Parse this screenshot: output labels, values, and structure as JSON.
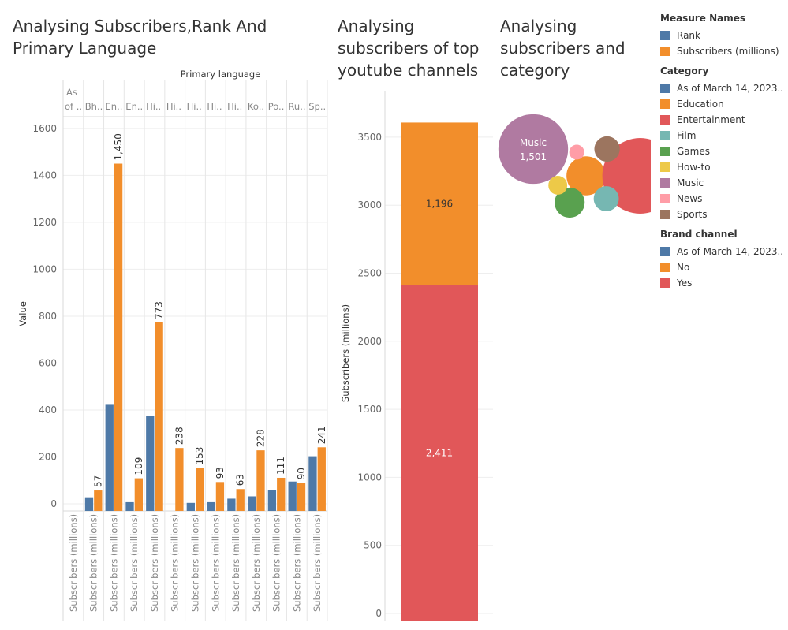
{
  "titles": {
    "chart1": "Analysing Subscribers,Rank And Primary Language",
    "chart2": "Analysing subscribers of top youtube channels",
    "chart3": "Analysing subscribers and category"
  },
  "legends": [
    {
      "title": "Measure Names",
      "items": [
        {
          "label": "Rank",
          "color": "#4e79a7"
        },
        {
          "label": "Subscribers (millions)",
          "color": "#f28e2b"
        }
      ]
    },
    {
      "title": "Category",
      "items": [
        {
          "label": "As of March 14, 2023..",
          "color": "#4e79a7"
        },
        {
          "label": "Education",
          "color": "#f28e2b"
        },
        {
          "label": "Entertainment",
          "color": "#e15759"
        },
        {
          "label": "Film",
          "color": "#76b7b2"
        },
        {
          "label": "Games",
          "color": "#59a14f"
        },
        {
          "label": "How-to",
          "color": "#edc948"
        },
        {
          "label": "Music",
          "color": "#b07aa1"
        },
        {
          "label": "News",
          "color": "#ff9da7"
        },
        {
          "label": "Sports",
          "color": "#9c755f"
        }
      ]
    },
    {
      "title": "Brand channel",
      "items": [
        {
          "label": "As of March 14, 2023..",
          "color": "#4e79a7"
        },
        {
          "label": "No",
          "color": "#f28e2b"
        },
        {
          "label": "Yes",
          "color": "#e15759"
        }
      ]
    }
  ],
  "chart_data": [
    {
      "type": "bar",
      "title": "Analysing Subscribers,Rank And Primary Language",
      "header": "Primary language",
      "ylabel": "Value",
      "ylim": [
        0,
        1650
      ],
      "yticks": [
        0,
        200,
        400,
        600,
        800,
        1000,
        1200,
        1400,
        1600
      ],
      "categories": [
        "As of ..",
        "Bh..",
        "En..",
        "En..",
        "Hi..",
        "Hi..",
        "Hi..",
        "Hi..",
        "Hi..",
        "Ko..",
        "Po..",
        "Ru..",
        "Sp.."
      ],
      "xtick_label": "Subscribers (millions)",
      "series": [
        {
          "name": "Rank",
          "color": "#4e79a7",
          "values": [
            0,
            28,
            422,
            7,
            374,
            0,
            4,
            7,
            22,
            32,
            60,
            95,
            203
          ]
        },
        {
          "name": "Subscribers (millions)",
          "color": "#f28e2b",
          "values": [
            0,
            57,
            1450,
            109,
            773,
            238,
            153,
            93,
            63,
            228,
            111,
            90,
            241
          ],
          "data_labels": [
            "",
            "57",
            "1,450",
            "109",
            "773",
            "238",
            "153",
            "93",
            "63",
            "228",
            "111",
            "90",
            "241"
          ]
        }
      ]
    },
    {
      "type": "bar",
      "stacked": true,
      "title": "Analysing subscribers of top youtube channels",
      "ylabel": "Subscribers (millions)",
      "ylim": [
        0,
        3650
      ],
      "yticks": [
        0,
        500,
        1000,
        1500,
        2000,
        2500,
        3000,
        3500
      ],
      "series": [
        {
          "name": "Yes",
          "color": "#e15759",
          "value": 2411,
          "label": "2,411",
          "label_color": "#ffffff"
        },
        {
          "name": "No",
          "color": "#f28e2b",
          "value": 1196,
          "label": "1,196",
          "label_color": "#333333"
        }
      ]
    },
    {
      "type": "bubble",
      "title": "Analysing subscribers and category",
      "bubbles": [
        {
          "name": "Music",
          "value": 1501,
          "value_label": "1,501",
          "color": "#b07aa1",
          "show_label": true
        },
        {
          "name": "Entertainment",
          "value": 1770,
          "color": "#e15759"
        },
        {
          "name": "Education",
          "value": 470,
          "color": "#f28e2b"
        },
        {
          "name": "Games",
          "value": 280,
          "color": "#59a14f"
        },
        {
          "name": "Film",
          "value": 195,
          "color": "#76b7b2"
        },
        {
          "name": "Sports",
          "value": 200,
          "color": "#9c755f"
        },
        {
          "name": "How-to",
          "value": 110,
          "color": "#edc948"
        },
        {
          "name": "News",
          "value": 70,
          "color": "#ff9da7"
        }
      ]
    }
  ]
}
